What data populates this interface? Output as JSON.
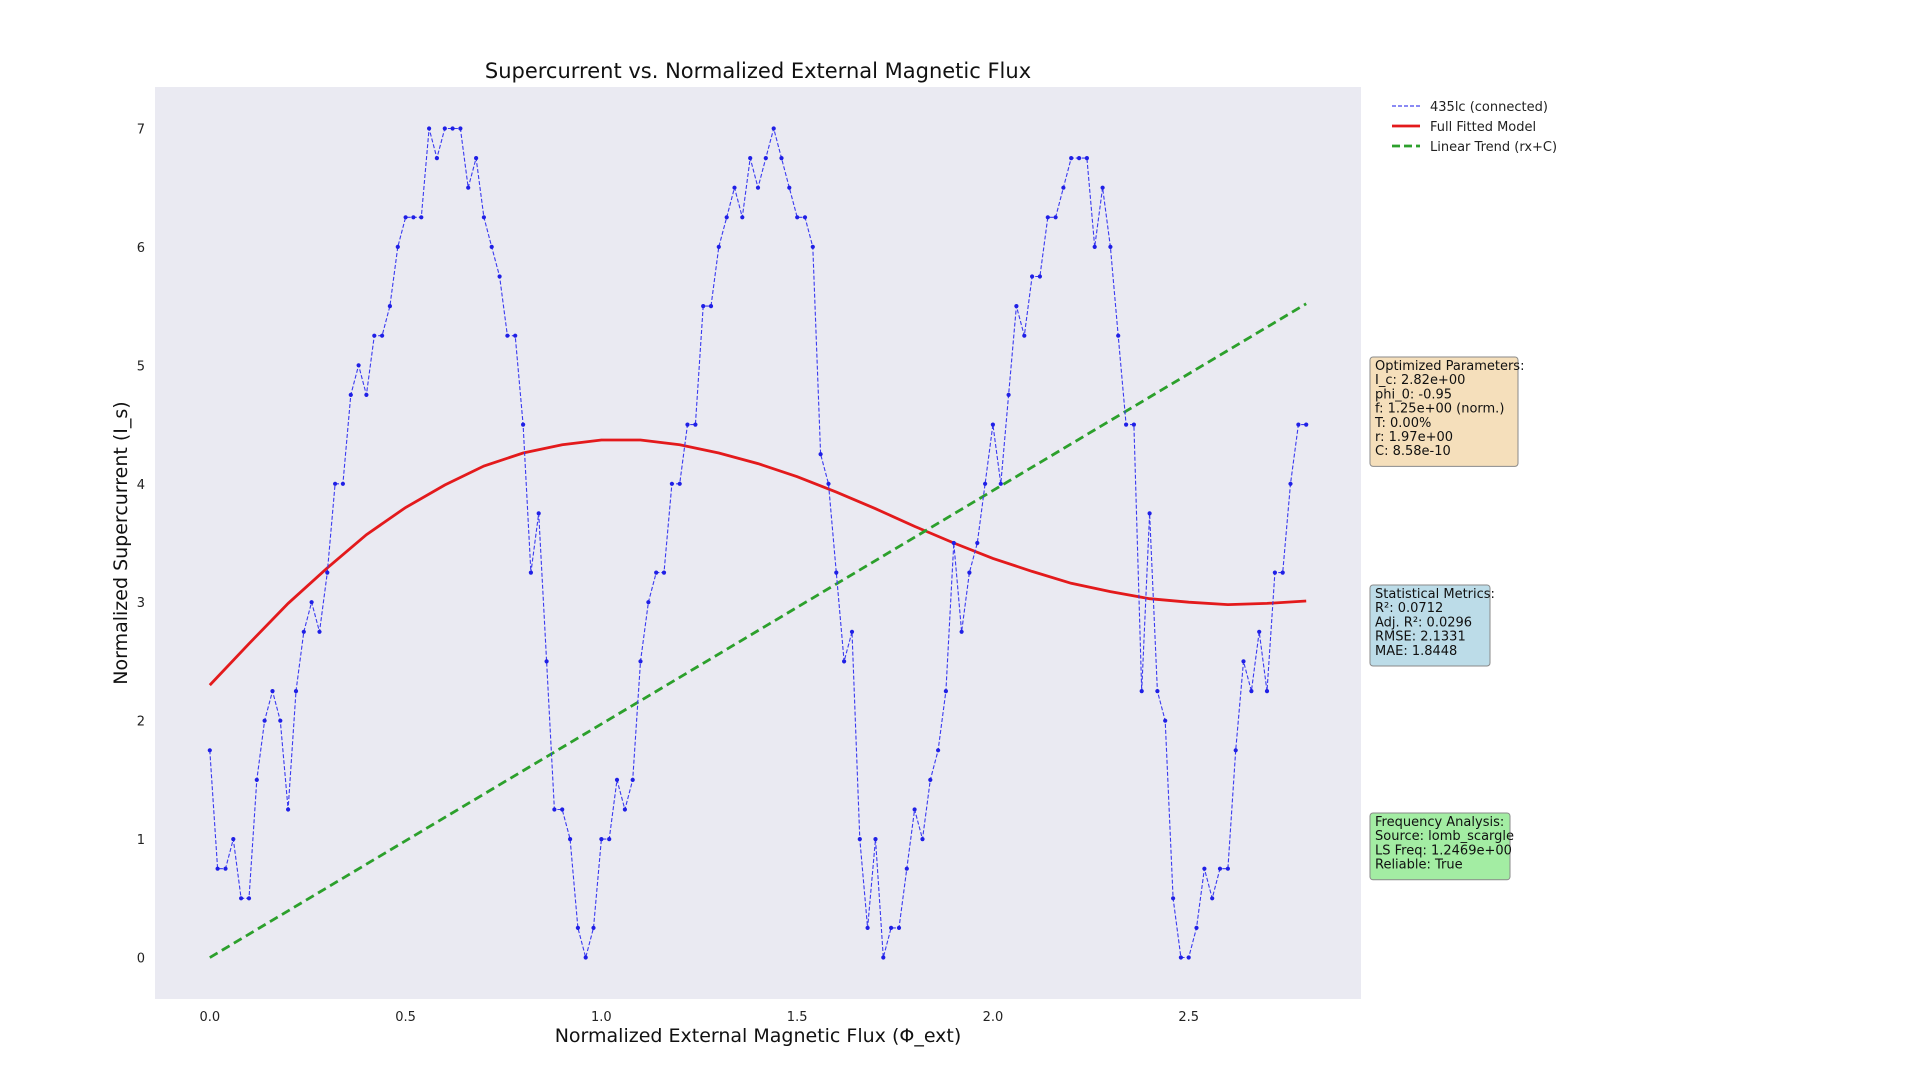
{
  "chart_data": {
    "type": "line",
    "title": "Supercurrent vs. Normalized External Magnetic Flux",
    "xlabel": "Normalized External Magnetic Flux (Φ_ext)",
    "ylabel": "Normalized Supercurrent (I_s)",
    "xlim": [
      -0.14,
      2.94
    ],
    "ylim": [
      -0.35,
      7.35
    ],
    "xticks": [
      0.0,
      0.5,
      1.0,
      1.5,
      2.0,
      2.5
    ],
    "xtick_labels": [
      "0.0",
      "0.5",
      "1.0",
      "1.5",
      "2.0",
      "2.5"
    ],
    "yticks": [
      0,
      1,
      2,
      3,
      4,
      5,
      6,
      7
    ],
    "ytick_labels": [
      "0",
      "1",
      "2",
      "3",
      "4",
      "5",
      "6",
      "7"
    ],
    "grid": false,
    "background_color": "#eaeaf2",
    "legend_position": "upper-right-outside",
    "series": [
      {
        "name": "435lc (connected)",
        "style": "dashed-markers",
        "color": "#1f1fe6",
        "x_start": 0.0,
        "x_step": 0.02,
        "y": [
          1.75,
          0.75,
          0.75,
          1.0,
          0.5,
          0.5,
          1.5,
          2.0,
          2.25,
          2.0,
          1.25,
          2.25,
          2.75,
          3.0,
          2.75,
          3.25,
          4.0,
          4.0,
          4.75,
          5.0,
          4.75,
          5.25,
          5.25,
          5.5,
          6.0,
          6.25,
          6.25,
          6.25,
          7.0,
          6.75,
          7.0,
          7.0,
          7.0,
          6.5,
          6.75,
          6.25,
          6.0,
          5.75,
          5.25,
          5.25,
          4.5,
          3.25,
          3.75,
          2.5,
          1.25,
          1.25,
          1.0,
          0.25,
          0.0,
          0.25,
          1.0,
          1.0,
          1.5,
          1.25,
          1.5,
          2.5,
          3.0,
          3.25,
          3.25,
          4.0,
          4.0,
          4.5,
          4.5,
          5.5,
          5.5,
          6.0,
          6.25,
          6.5,
          6.25,
          6.75,
          6.5,
          6.75,
          7.0,
          6.75,
          6.5,
          6.25,
          6.25,
          6.0,
          4.25,
          4.0,
          3.25,
          2.5,
          2.75,
          1.0,
          0.25,
          1.0,
          0.0,
          0.25,
          0.25,
          0.75,
          1.25,
          1.0,
          1.5,
          1.75,
          2.25,
          3.5,
          2.75,
          3.25,
          3.5,
          4.0,
          4.5,
          4.0,
          4.75,
          5.5,
          5.25,
          5.75,
          5.75,
          6.25,
          6.25,
          6.5,
          6.75,
          6.75,
          6.75,
          6.0,
          6.5,
          6.0,
          5.25,
          4.5,
          4.5,
          2.25,
          3.75,
          2.25,
          2.0,
          0.5,
          0.0,
          0.0,
          0.25,
          0.75,
          0.5,
          0.75,
          0.75,
          1.75,
          2.5,
          2.25,
          2.75,
          2.25,
          3.25,
          3.25,
          4.0,
          4.5,
          4.5
        ]
      },
      {
        "name": "Full Fitted Model",
        "style": "solid",
        "color": "#e31a1c",
        "x": [
          0.0,
          0.1,
          0.2,
          0.3,
          0.4,
          0.5,
          0.6,
          0.7,
          0.8,
          0.9,
          1.0,
          1.1,
          1.2,
          1.3,
          1.4,
          1.5,
          1.6,
          1.7,
          1.8,
          1.9,
          2.0,
          2.1,
          2.2,
          2.3,
          2.4,
          2.5,
          2.6,
          2.7,
          2.8
        ],
        "y": [
          2.3,
          2.65,
          2.99,
          3.29,
          3.57,
          3.8,
          3.99,
          4.15,
          4.26,
          4.33,
          4.37,
          4.37,
          4.33,
          4.26,
          4.17,
          4.06,
          3.93,
          3.79,
          3.64,
          3.5,
          3.37,
          3.26,
          3.16,
          3.09,
          3.03,
          3.0,
          2.98,
          2.99,
          3.01
        ]
      },
      {
        "name": "Linear Trend (rx+C)",
        "style": "dashed",
        "color": "#2ca02c",
        "x": [
          0.0,
          2.8
        ],
        "y": [
          0.0,
          5.52
        ]
      }
    ],
    "legend": [
      {
        "label": "435lc (connected)",
        "style": "dashed-thin",
        "color": "#4444ee"
      },
      {
        "label": "Full Fitted Model",
        "style": "solid",
        "color": "#e31a1c"
      },
      {
        "label": "Linear Trend (rx+C)",
        "style": "dashed",
        "color": "#2ca02c"
      }
    ],
    "annotations": [
      {
        "id": "params",
        "color": "#f5dfbb",
        "lines": [
          "Optimized Parameters:",
          "I_c: 2.82e+00",
          "phi_0: -0.95",
          "f: 1.25e+00 (norm.)",
          "T: 0.00%",
          "r: 1.97e+00",
          "C: 8.58e-10"
        ]
      },
      {
        "id": "stats",
        "color": "#bcdce8",
        "lines": [
          "Statistical Metrics:",
          "R²: 0.0712",
          "Adj. R²: 0.0296",
          "RMSE: 2.1331",
          "MAE: 1.8448"
        ]
      },
      {
        "id": "freq",
        "color": "#a3eda3",
        "lines": [
          "Frequency Analysis:",
          "Source: lomb_scargle",
          "LS Freq: 1.2469e+00",
          "Reliable: True"
        ]
      }
    ]
  }
}
